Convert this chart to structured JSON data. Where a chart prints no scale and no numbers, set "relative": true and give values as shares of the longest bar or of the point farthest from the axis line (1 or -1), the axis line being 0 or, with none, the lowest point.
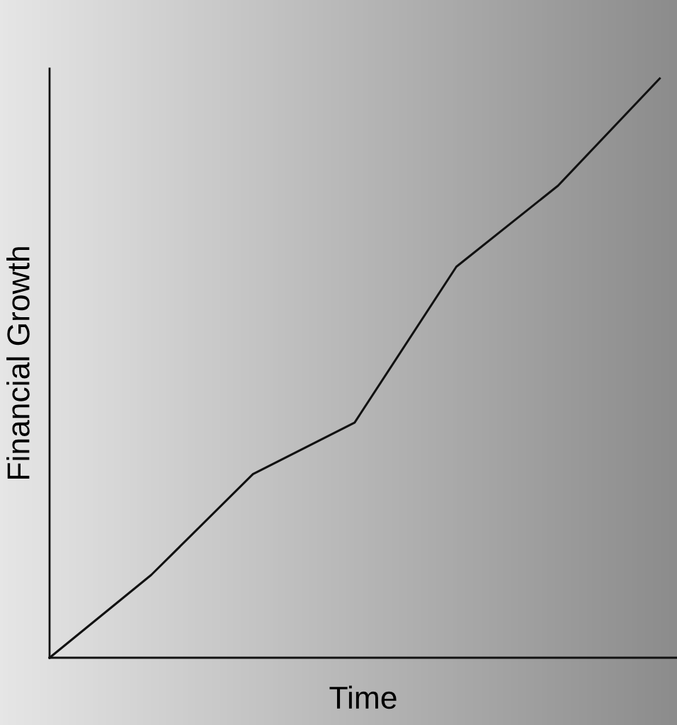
{
  "chart_data": {
    "type": "line",
    "xlabel": "Time",
    "ylabel": "Financial Growth",
    "relative": true,
    "categories": [
      null,
      null,
      null,
      null,
      null,
      null,
      null
    ],
    "series": [
      {
        "color": "#111111",
        "values": [
          0,
          0.143,
          0.317,
          0.406,
          0.675,
          0.815,
          1
        ]
      }
    ],
    "grid": false,
    "legend": false,
    "marker": "none",
    "line_style": "solid"
  }
}
